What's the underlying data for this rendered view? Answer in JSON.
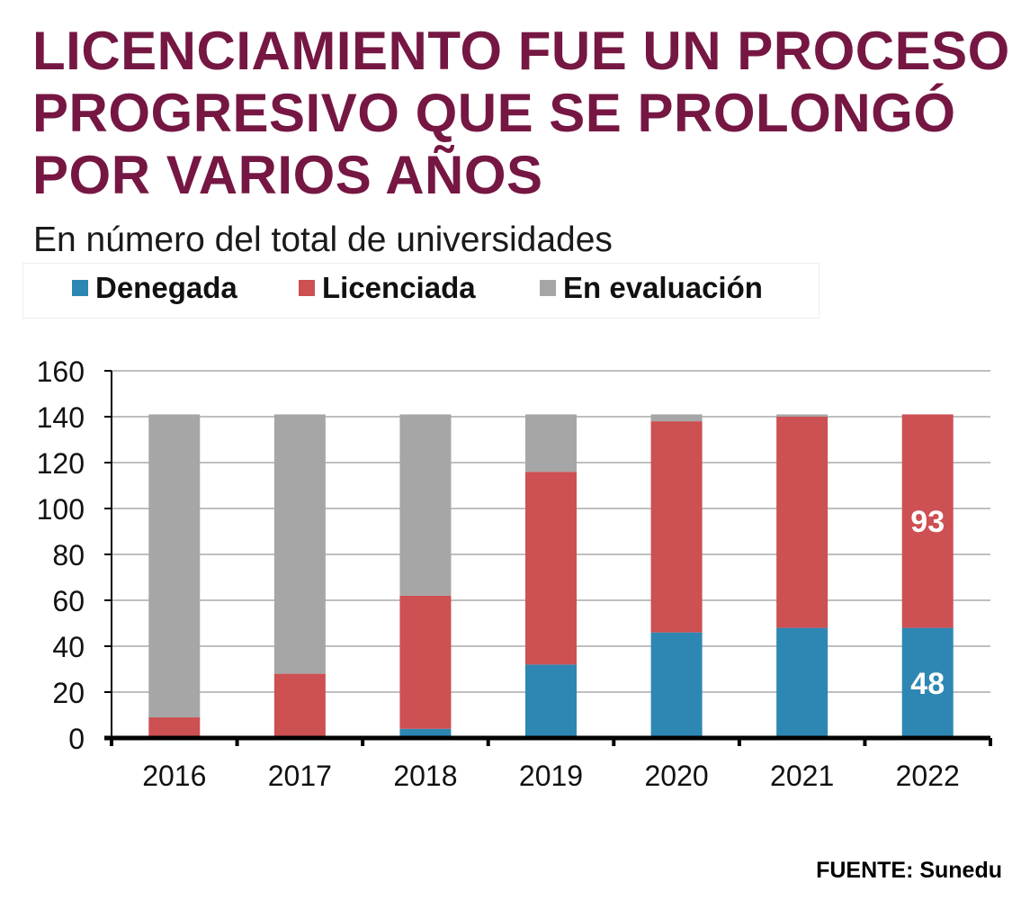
{
  "title": "LICENCIAMIENTO FUE UN PROCESO PROGRESIVO QUE SE PROLONGÓ POR VARIOS AÑOS",
  "subtitle": "En número del total de universidades",
  "source": "FUENTE: Sunedu",
  "colors": {
    "title": "#751742",
    "denegada": "#2E87B3",
    "licenciada": "#CD5052",
    "evaluacion": "#A6A6A6"
  },
  "legend": [
    {
      "label": "Denegada",
      "color": "#2E87B3"
    },
    {
      "label": "Licenciada",
      "color": "#CD5052"
    },
    {
      "label": "En evaluación",
      "color": "#A6A6A6"
    }
  ],
  "chart_data": {
    "type": "bar",
    "stacked": true,
    "categories": [
      "2016",
      "2017",
      "2018",
      "2019",
      "2020",
      "2021",
      "2022"
    ],
    "series": [
      {
        "name": "Denegada",
        "values": [
          0,
          0,
          4,
          32,
          46,
          48,
          48
        ]
      },
      {
        "name": "Licenciada",
        "values": [
          9,
          28,
          58,
          84,
          92,
          92,
          93
        ]
      },
      {
        "name": "En evaluación",
        "values": [
          132,
          113,
          79,
          25,
          3,
          1,
          0
        ]
      }
    ],
    "ylim": [
      0,
      160
    ],
    "yticks": [
      0,
      20,
      40,
      60,
      80,
      100,
      120,
      140,
      160
    ],
    "grid": true,
    "legend_position": "top",
    "data_labels": [
      {
        "category": "2022",
        "series": "Licenciada",
        "text": "93"
      },
      {
        "category": "2022",
        "series": "Denegada",
        "text": "48"
      }
    ]
  }
}
